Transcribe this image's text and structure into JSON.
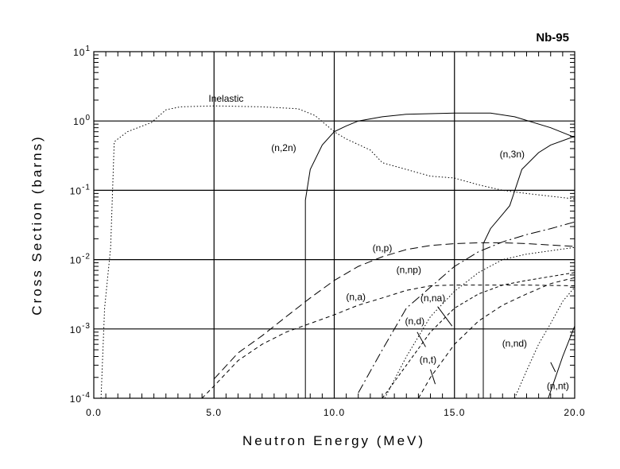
{
  "chart_data": {
    "type": "line",
    "title": "Nb-95",
    "xlabel": "Neutron Energy (MeV)",
    "ylabel": "Cross Section (barns)",
    "xlim": [
      0,
      20
    ],
    "ylim": [
      0.0001,
      10
    ],
    "yscale": "log",
    "grid": true,
    "x_ticks": [
      "0.0",
      "5.0",
      "10.0",
      "15.0",
      "20.0"
    ],
    "y_ticks": [
      {
        "base": "10",
        "exp": "1"
      },
      {
        "base": "10",
        "exp": "0"
      },
      {
        "base": "10",
        "exp": "-1"
      },
      {
        "base": "10",
        "exp": "-2"
      },
      {
        "base": "10",
        "exp": "-3"
      },
      {
        "base": "10",
        "exp": "-4"
      }
    ],
    "series": [
      {
        "name": "Inelastic",
        "style": "dotted",
        "label_at": [
          5.5,
          2.1
        ],
        "points": [
          [
            0.3,
            0.0001
          ],
          [
            0.45,
            0.002
          ],
          [
            0.7,
            0.015
          ],
          [
            0.85,
            0.5
          ],
          [
            1.4,
            0.7
          ],
          [
            2.4,
            0.95
          ],
          [
            3.0,
            1.45
          ],
          [
            3.6,
            1.6
          ],
          [
            5,
            1.65
          ],
          [
            7,
            1.6
          ],
          [
            8.5,
            1.5
          ],
          [
            9.2,
            1.2
          ],
          [
            10,
            0.7
          ],
          [
            10.5,
            0.55
          ],
          [
            11.5,
            0.38
          ],
          [
            12,
            0.25
          ],
          [
            13,
            0.2
          ],
          [
            14,
            0.16
          ],
          [
            15,
            0.15
          ],
          [
            16,
            0.12
          ],
          [
            17,
            0.1
          ],
          [
            18,
            0.09
          ],
          [
            20,
            0.075
          ]
        ]
      },
      {
        "name": "(n,2n)",
        "style": "solid",
        "label_at": [
          7.9,
          0.41
        ],
        "points": [
          [
            8.8,
            0.0001
          ],
          [
            8.8,
            0.072
          ],
          [
            9,
            0.2
          ],
          [
            9.5,
            0.45
          ],
          [
            10,
            0.7
          ],
          [
            10.5,
            0.85
          ],
          [
            11,
            1.0
          ],
          [
            12,
            1.15
          ],
          [
            13,
            1.25
          ],
          [
            15,
            1.3
          ],
          [
            16.5,
            1.3
          ],
          [
            17.5,
            1.15
          ],
          [
            19,
            0.8
          ],
          [
            20,
            0.58
          ]
        ]
      },
      {
        "name": "(n,3n)",
        "style": "solid",
        "label_at": [
          17.4,
          0.33
        ],
        "points": [
          [
            16.2,
            0.0001
          ],
          [
            16.2,
            0.017
          ],
          [
            16.5,
            0.028
          ],
          [
            17,
            0.045
          ],
          [
            17.3,
            0.06
          ],
          [
            17.8,
            0.2
          ],
          [
            18.5,
            0.35
          ],
          [
            19,
            0.45
          ],
          [
            20,
            0.6
          ]
        ]
      },
      {
        "name": "(n,p)",
        "style": "longdash",
        "label_at": [
          12.0,
          0.0148
        ],
        "points": [
          [
            5,
            0.00019
          ],
          [
            6,
            0.00045
          ],
          [
            7,
            0.0008
          ],
          [
            8,
            0.0015
          ],
          [
            9,
            0.0028
          ],
          [
            10,
            0.005
          ],
          [
            11,
            0.008
          ],
          [
            12,
            0.011
          ],
          [
            13,
            0.014
          ],
          [
            14,
            0.016
          ],
          [
            15,
            0.017
          ],
          [
            16,
            0.0175
          ],
          [
            17,
            0.0175
          ],
          [
            18,
            0.017
          ],
          [
            20,
            0.0155
          ]
        ]
      },
      {
        "name": "(n,np)",
        "style": "dashdot",
        "label_at": [
          13.1,
          0.0071
        ],
        "points": [
          [
            11.0,
            0.00012
          ],
          [
            12,
            0.0005
          ],
          [
            13,
            0.002
          ],
          [
            14,
            0.004
          ],
          [
            15,
            0.008
          ],
          [
            16,
            0.013
          ],
          [
            17,
            0.018
          ],
          [
            18,
            0.023
          ],
          [
            19,
            0.028
          ],
          [
            20,
            0.035
          ]
        ]
      },
      {
        "name": "(n,a)",
        "style": "dashed",
        "label_at": [
          10.9,
          0.0029
        ],
        "points": [
          [
            4.5,
            0.0001
          ],
          [
            5,
            0.00015
          ],
          [
            6,
            0.00035
          ],
          [
            7,
            0.0006
          ],
          [
            8,
            0.0009
          ],
          [
            9,
            0.0012
          ],
          [
            10,
            0.0016
          ],
          [
            11,
            0.0022
          ],
          [
            12,
            0.0028
          ],
          [
            13,
            0.0036
          ],
          [
            14,
            0.0042
          ],
          [
            15,
            0.0043
          ],
          [
            16,
            0.0043
          ],
          [
            18,
            0.0043
          ],
          [
            20,
            0.0042
          ]
        ]
      },
      {
        "name": "(n,na)",
        "style": "shortdash",
        "label_at": [
          14.1,
          0.0028
        ],
        "leader": [
          [
            14.3,
            0.0021
          ],
          [
            14.9,
            0.0011
          ]
        ],
        "points": [
          [
            12,
            0.0001
          ],
          [
            13,
            0.0003
          ],
          [
            14,
            0.0009
          ],
          [
            15,
            0.002
          ],
          [
            16,
            0.0032
          ],
          [
            17,
            0.0043
          ],
          [
            18,
            0.005
          ],
          [
            20,
            0.0065
          ]
        ]
      },
      {
        "name": "(n,d)",
        "style": "dotted",
        "label_at": [
          13.35,
          0.0013
        ],
        "leader": [
          [
            13.45,
            0.0009
          ],
          [
            13.8,
            0.00055
          ]
        ],
        "points": [
          [
            12.1,
            0.0001
          ],
          [
            13,
            0.0004
          ],
          [
            14,
            0.0015
          ],
          [
            15,
            0.0035
          ],
          [
            16,
            0.0065
          ],
          [
            17,
            0.01
          ],
          [
            18,
            0.012
          ],
          [
            20,
            0.015
          ]
        ]
      },
      {
        "name": "(n,t)",
        "style": "dashed",
        "label_at": [
          13.9,
          0.00036
        ],
        "leader": [
          [
            14.0,
            0.00026
          ],
          [
            14.2,
            0.00016
          ]
        ],
        "points": [
          [
            13.5,
            0.0001
          ],
          [
            14,
            0.0002
          ],
          [
            15,
            0.0006
          ],
          [
            16,
            0.0013
          ],
          [
            17,
            0.0022
          ],
          [
            18,
            0.0032
          ],
          [
            19,
            0.0045
          ],
          [
            20,
            0.0055
          ]
        ]
      },
      {
        "name": "(n,nd)",
        "style": "dotted",
        "label_at": [
          17.5,
          0.00062
        ],
        "points": [
          [
            17.5,
            0.0001
          ],
          [
            18,
            0.00025
          ],
          [
            18.5,
            0.0006
          ],
          [
            19,
            0.0012
          ],
          [
            19.5,
            0.0025
          ],
          [
            20,
            0.004
          ]
        ]
      },
      {
        "name": "(n,nt)",
        "style": "solid",
        "label_at": [
          19.3,
          0.00015
        ],
        "leader": [
          [
            19.2,
            0.00024
          ],
          [
            19.0,
            0.00033
          ]
        ],
        "points": [
          [
            18.9,
            0.0001
          ],
          [
            19.2,
            0.0002
          ],
          [
            19.5,
            0.0004
          ],
          [
            20,
            0.0011
          ]
        ]
      }
    ]
  }
}
